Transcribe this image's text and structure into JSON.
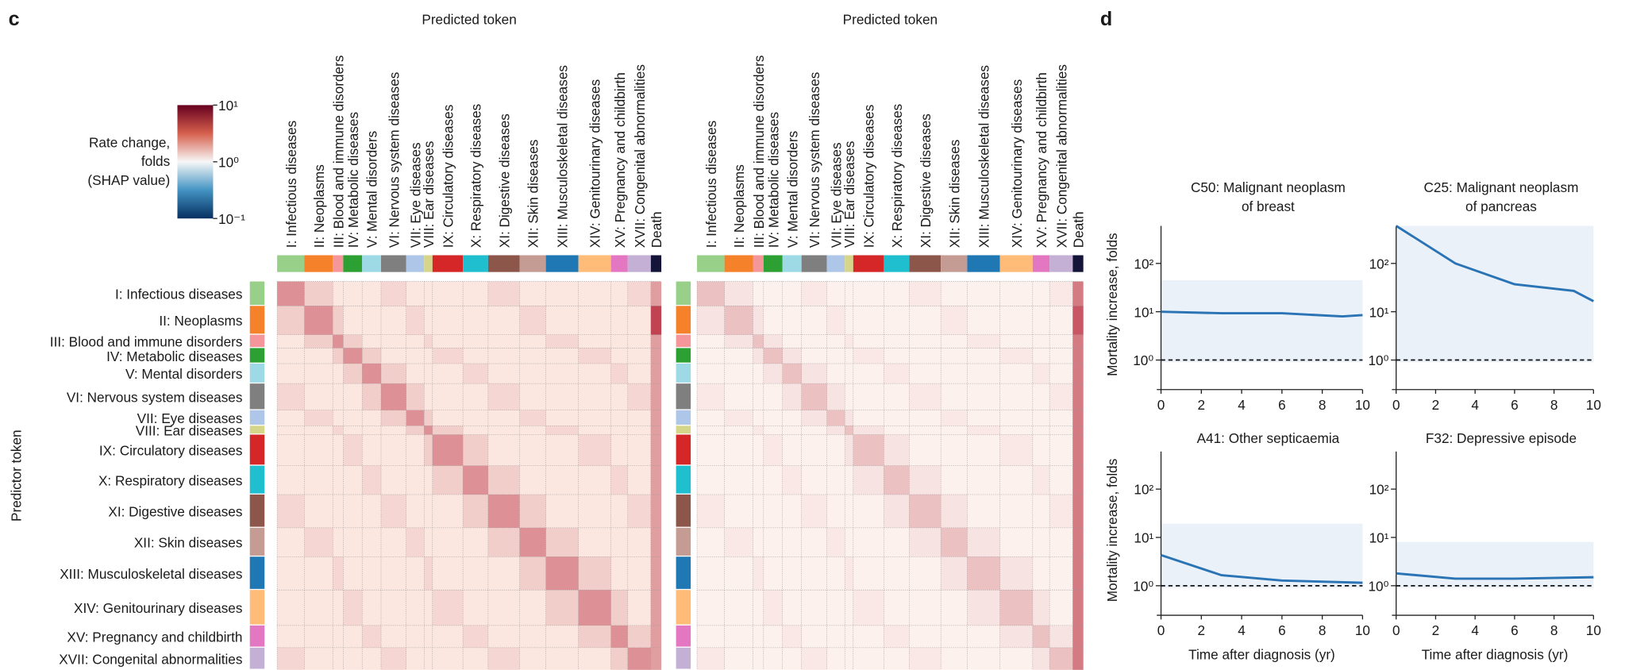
{
  "panel_labels": [
    "c",
    "d"
  ],
  "chart_data": [
    {
      "type": "heatmap",
      "x_title": "Predicted token",
      "y_title": "Predictor token",
      "x_categories": [
        "I: Infectious diseases",
        "II: Neoplasms",
        "III: Blood and immune disorders",
        "IV: Metabolic diseases",
        "V: Mental disorders",
        "VI: Nervous system diseases",
        "VII: Eye diseases",
        "VIII: Ear diseases",
        "IX: Circulatory diseases",
        "X: Respiratory diseases",
        "XI: Digestive diseases",
        "XII: Skin diseases",
        "XIII: Musculoskeletal diseases",
        "XIV: Genitourinary diseases",
        "XV: Pregnancy and childbirth",
        "XVII: Congenital abnormalities",
        "Death"
      ],
      "y_categories": [
        "I: Infectious diseases",
        "II: Neoplasms",
        "III: Blood and immune disorders",
        "IV: Metabolic diseases",
        "V: Mental disorders",
        "VI: Nervous system diseases",
        "VII: Eye diseases",
        "VIII: Ear diseases",
        "IX: Circulatory diseases",
        "X: Respiratory diseases",
        "XI: Digestive diseases",
        "XII: Skin diseases",
        "XIII: Musculoskeletal diseases",
        "XIV: Genitourinary diseases",
        "XV: Pregnancy and childbirth",
        "XVII: Congenital abnormalities"
      ],
      "colors": [
        "#98d08a",
        "#f5822a",
        "#f4969a",
        "#2ca033",
        "#9edae5",
        "#7f7f7f",
        "#aec7e8",
        "#d6d68a",
        "#d62728",
        "#1fbfcf",
        "#8c564b",
        "#c49c94",
        "#1f77b4",
        "#ffbb78",
        "#e377c2",
        "#c5b0d5",
        "#141438"
      ],
      "colorbar": {
        "label_lines": [
          "Rate change,",
          "folds",
          "(SHAP value)"
        ],
        "log": true,
        "lim": [
          0.1,
          10
        ],
        "ticks": [
          {
            "value": 10,
            "label": "10¹"
          },
          {
            "value": 1,
            "label": "10⁰"
          },
          {
            "value": 0.1,
            "label": "10⁻¹"
          }
        ],
        "colors": [
          "#053061",
          "#4393c3",
          "#f7f7f7",
          "#d6604d",
          "#67001f"
        ]
      }
    },
    {
      "type": "heatmap",
      "x_title": "Predicted token",
      "x_categories": [
        "I: Infectious diseases",
        "II: Neoplasms",
        "III: Blood and immune disorders",
        "IV: Metabolic diseases",
        "V: Mental disorders",
        "VI: Nervous system diseases",
        "VII: Eye diseases",
        "VIII: Ear diseases",
        "IX: Circulatory diseases",
        "X: Respiratory diseases",
        "XI: Digestive diseases",
        "XII: Skin diseases",
        "XIII: Musculoskeletal diseases",
        "XIV: Genitourinary diseases",
        "XV: Pregnancy and childbirth",
        "XVII: Congenital abnormalities",
        "Death"
      ],
      "colors": [
        "#98d08a",
        "#f5822a",
        "#f4969a",
        "#2ca033",
        "#9edae5",
        "#7f7f7f",
        "#aec7e8",
        "#d6d68a",
        "#d62728",
        "#1fbfcf",
        "#8c564b",
        "#c49c94",
        "#1f77b4",
        "#ffbb78",
        "#e377c2",
        "#c5b0d5",
        "#141438"
      ]
    },
    {
      "type": "line",
      "title_lines": [
        "C50: Malignant neoplasm",
        "of breast"
      ],
      "y_label": "Mortality increase, folds",
      "x": [
        0,
        3,
        6,
        9,
        10
      ],
      "values": [
        10,
        9.3,
        9.3,
        8,
        8.5
      ],
      "color": "#2a74b5",
      "log_y": true,
      "hline": 1,
      "xlim": [
        0,
        10
      ],
      "xticks": [
        0,
        2,
        4,
        6,
        8,
        10
      ],
      "ylim": [
        0.33,
        600
      ],
      "yticks": [
        {
          "value": 1,
          "label": "10⁰"
        },
        {
          "value": 10,
          "label": "10¹"
        },
        {
          "value": 100,
          "label": "10²"
        }
      ]
    },
    {
      "type": "line",
      "title_lines": [
        "C25: Malignant neoplasm",
        "of pancreas"
      ],
      "x": [
        0,
        3,
        6,
        9,
        10
      ],
      "values": [
        600,
        100,
        37,
        27,
        16.5
      ],
      "color": "#2a74b5",
      "log_y": true,
      "hline": 1,
      "xlim": [
        0,
        10
      ],
      "xticks": [
        0,
        2,
        4,
        6,
        8,
        10
      ],
      "ylim": [
        0.33,
        600
      ],
      "yticks": [
        {
          "value": 1,
          "label": "10⁰"
        },
        {
          "value": 10,
          "label": "10¹"
        },
        {
          "value": 100,
          "label": "10²"
        }
      ]
    },
    {
      "type": "line",
      "title_lines": [
        "A41: Other septicaemia"
      ],
      "y_label": "Mortality increase, folds",
      "x_label": "Time after diagnosis (yr)",
      "x": [
        0,
        3,
        6,
        10
      ],
      "values": [
        4.3,
        1.65,
        1.28,
        1.15
      ],
      "color": "#2a74b5",
      "log_y": true,
      "hline": 1,
      "xlim": [
        0,
        10
      ],
      "xticks": [
        0,
        2,
        4,
        6,
        8,
        10
      ],
      "ylim": [
        0.33,
        600
      ],
      "yticks": [
        {
          "value": 1,
          "label": "10⁰"
        },
        {
          "value": 10,
          "label": "10¹"
        },
        {
          "value": 100,
          "label": "10²"
        }
      ]
    },
    {
      "type": "line",
      "title_lines": [
        "F32: Depressive episode"
      ],
      "x_label": "Time after diagnosis (yr)",
      "x": [
        0,
        3,
        6,
        10
      ],
      "values": [
        1.8,
        1.4,
        1.4,
        1.5
      ],
      "color": "#2a74b5",
      "log_y": true,
      "hline": 1,
      "xlim": [
        0,
        10
      ],
      "xticks": [
        0,
        2,
        4,
        6,
        8,
        10
      ],
      "ylim": [
        0.33,
        600
      ],
      "yticks": [
        {
          "value": 1,
          "label": "10⁰"
        },
        {
          "value": 10,
          "label": "10¹"
        },
        {
          "value": 100,
          "label": "10²"
        }
      ]
    }
  ]
}
